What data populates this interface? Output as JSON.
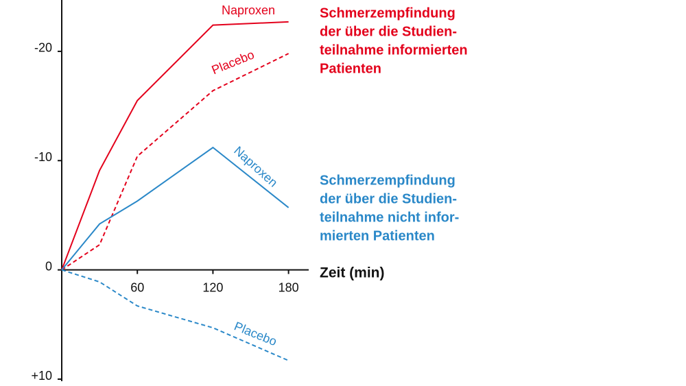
{
  "chart_data": {
    "type": "line",
    "x": [
      0,
      30,
      60,
      120,
      180
    ],
    "xlim": [
      0,
      196
    ],
    "xticks": [
      60,
      120,
      180
    ],
    "ylim": [
      -24.7,
      10
    ],
    "yticks": [
      -20,
      -10,
      0,
      {
        "value": 10,
        "label": "+10"
      }
    ],
    "x_label": "Zeit (min)",
    "series": [
      {
        "name": "Naproxen",
        "color": "#e3001b",
        "dashed": false,
        "values": [
          0,
          -9.1,
          -15.5,
          -22.4,
          -22.7
        ]
      },
      {
        "name": "Placebo",
        "color": "#e3001b",
        "dashed": true,
        "values": [
          0,
          -2.3,
          -10.4,
          -16.4,
          -19.8
        ]
      },
      {
        "name": "Naproxen",
        "color": "#2a88c8",
        "dashed": false,
        "values": [
          0,
          -4.2,
          -6.3,
          -11.2,
          -5.7
        ]
      },
      {
        "name": "Placebo",
        "color": "#2a88c8",
        "dashed": true,
        "values": [
          0,
          1.1,
          3.3,
          5.3,
          8.3
        ]
      }
    ],
    "annotations": [
      {
        "color": "#e3001b",
        "lines": [
          "Schmerzempfindung",
          "der über die Studien-",
          "teilnahme informierten",
          "Patienten"
        ]
      },
      {
        "color": "#2a88c8",
        "lines": [
          "Schmerzempfindung",
          "der über die Studien-",
          "teilnahme nicht infor-",
          "mierten Patienten"
        ]
      }
    ]
  }
}
